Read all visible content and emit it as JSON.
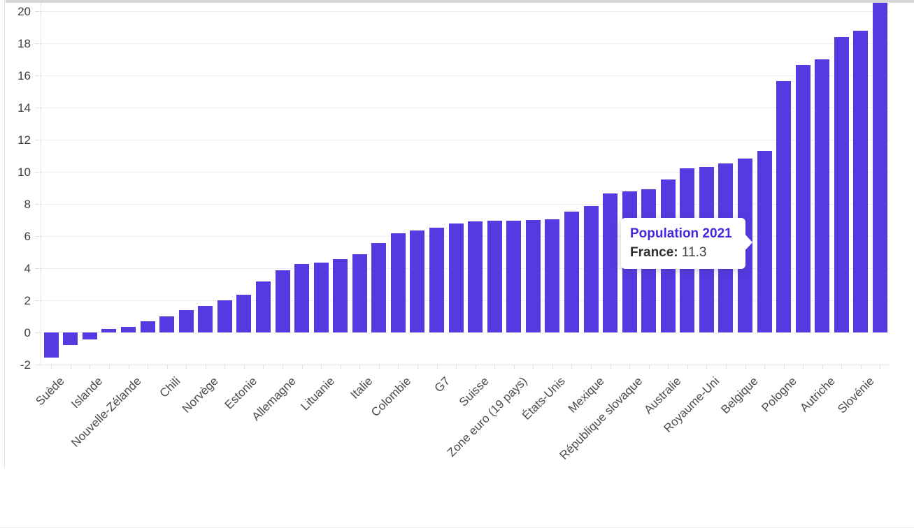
{
  "page": {
    "background": "#ffffff",
    "top_strip_color": "#d6d6d6"
  },
  "chart_data": {
    "type": "bar",
    "title": "",
    "series_name": "Population 2021",
    "bar_color": "#5539e1",
    "categories": [
      "Suède",
      "",
      "Islande",
      "",
      "Nouvelle-Zélande",
      "",
      "Chili",
      "",
      "Norvège",
      "",
      "Estonie",
      "",
      "Allemagne",
      "",
      "Lituanie",
      "",
      "Italie",
      "",
      "Colombie",
      "",
      "G7",
      "",
      "Suisse",
      "",
      "Zone euro (19 pays)",
      "",
      "États-Unis",
      "",
      "Mexique",
      "",
      "République slovaque",
      "",
      "Australie",
      "",
      "Royaume-Uni",
      "",
      "Belgique",
      "France",
      "Pologne",
      "",
      "Autriche",
      "",
      "Slovénie",
      ""
    ],
    "values": [
      -1.6,
      -0.8,
      -0.45,
      0.2,
      0.35,
      0.7,
      1.0,
      1.4,
      1.65,
      2.0,
      2.35,
      3.15,
      3.85,
      4.25,
      4.35,
      4.55,
      4.85,
      5.55,
      6.15,
      6.35,
      6.5,
      6.75,
      6.9,
      6.95,
      6.95,
      7.0,
      7.05,
      7.5,
      7.85,
      8.65,
      8.75,
      8.9,
      9.5,
      10.2,
      10.3,
      10.5,
      10.8,
      11.3,
      15.65,
      16.65,
      17.0,
      18.4,
      18.75,
      20.5
    ],
    "y_ticks": [
      20,
      18,
      16,
      14,
      12,
      10,
      8,
      6,
      4,
      2,
      0,
      -2
    ],
    "ylim": [
      -2,
      20
    ],
    "grid": true,
    "x_label_rotation_deg": 45,
    "x_labels_every_other": true,
    "last_bar_clipped_at_top": true,
    "legend_position": "none",
    "tooltip": {
      "title": "Population 2021",
      "series_label": "France:",
      "value": "11.3",
      "bar_index": 37
    }
  }
}
